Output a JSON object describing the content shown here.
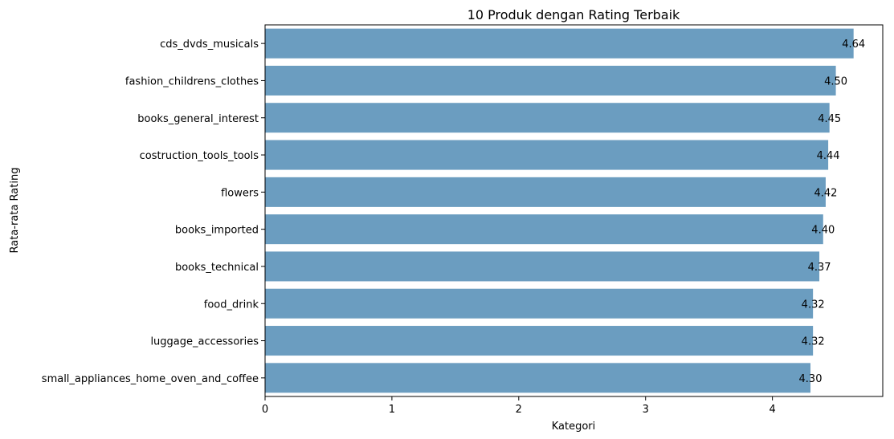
{
  "chart_data": {
    "type": "bar",
    "orientation": "horizontal",
    "title": "10 Produk dengan Rating Terbaik",
    "xlabel": "Kategori",
    "ylabel": "Rata-rata Rating",
    "xlim": [
      0,
      4.87
    ],
    "xticks": [
      0,
      1,
      2,
      3,
      4
    ],
    "categories": [
      "cds_dvds_musicals",
      "fashion_childrens_clothes",
      "books_general_interest",
      "costruction_tools_tools",
      "flowers",
      "books_imported",
      "books_technical",
      "food_drink",
      "luggage_accessories",
      "small_appliances_home_oven_and_coffee"
    ],
    "values": [
      4.64,
      4.5,
      4.45,
      4.44,
      4.42,
      4.4,
      4.37,
      4.32,
      4.32,
      4.3
    ],
    "data_labels": [
      "4.64",
      "4.50",
      "4.45",
      "4.44",
      "4.42",
      "4.40",
      "4.37",
      "4.32",
      "4.32",
      "4.30"
    ],
    "bar_color": "#6b9dc0",
    "grid": false,
    "legend": "none"
  }
}
